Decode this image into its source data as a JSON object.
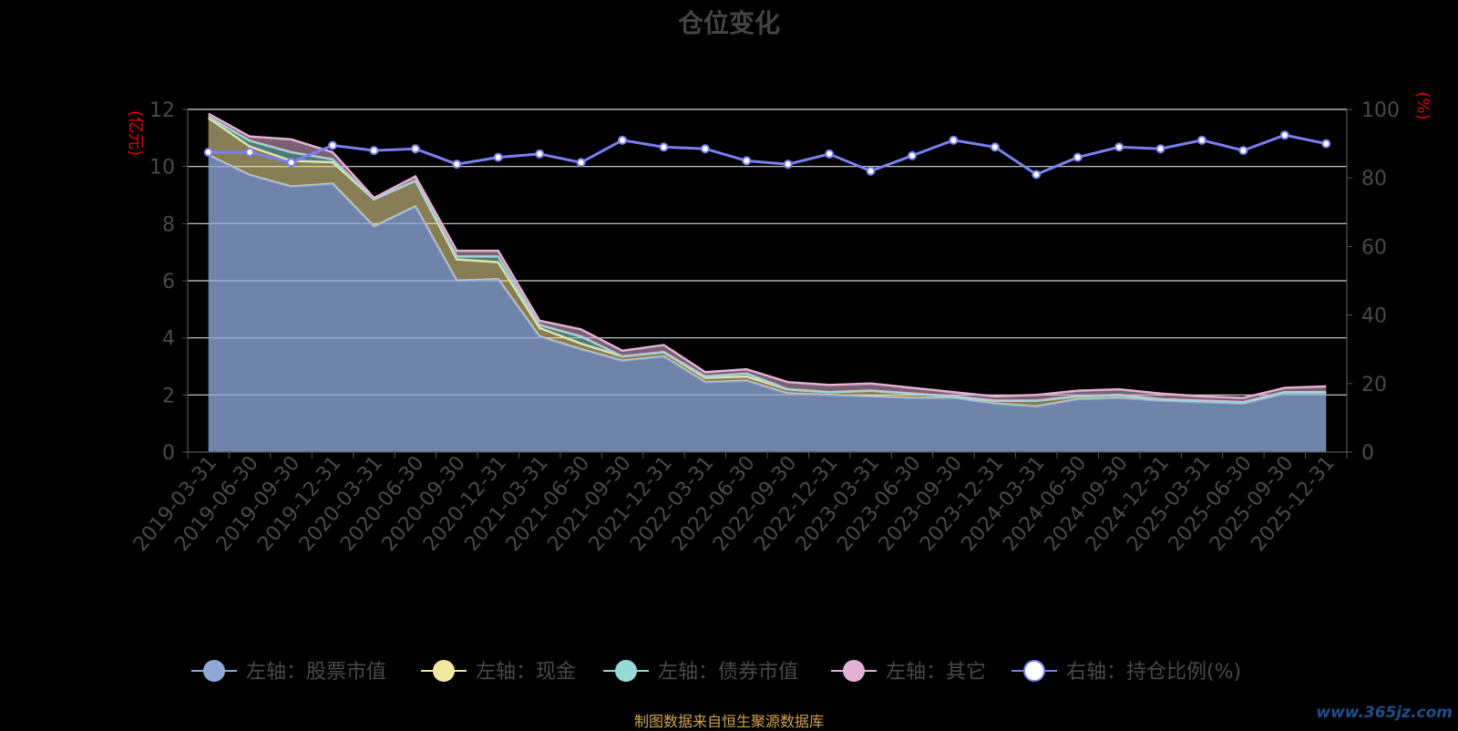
{
  "chart_data": {
    "title": "仓位变化",
    "type": "area",
    "x": [
      "2019-03-31",
      "2019-06-30",
      "2019-09-30",
      "2019-12-31",
      "2020-03-31",
      "2020-06-30",
      "2020-09-30",
      "2020-12-31",
      "2021-03-31",
      "2021-06-30",
      "2021-09-30",
      "2021-12-31",
      "2022-03-31",
      "2022-06-30",
      "2022-09-30",
      "2022-12-31",
      "2023-03-31",
      "2023-06-30",
      "2023-09-30",
      "2023-12-31",
      "2024-03-31",
      "2024-06-30",
      "2024-09-30",
      "2024-12-31",
      "2025-03-31",
      "2025-06-30",
      "2025-09-30",
      "2025-12-31"
    ],
    "y_left": {
      "label": "(亿元)",
      "ylim": [
        0,
        12
      ],
      "ticks": [
        "0",
        "2",
        "4",
        "6",
        "8",
        "10",
        "12"
      ]
    },
    "y_right": {
      "label": "(%)",
      "ylim": [
        0,
        100
      ],
      "ticks": [
        "0",
        "20",
        "40",
        "60",
        "80",
        "100"
      ]
    },
    "stacked": true,
    "grid": true,
    "series": [
      {
        "name": "左轴：股票市值",
        "axis": "left",
        "color": "#8fa8d8",
        "values": [
          10.4,
          9.7,
          9.3,
          9.4,
          7.9,
          8.6,
          6.0,
          6.05,
          4.05,
          3.6,
          3.2,
          3.35,
          2.45,
          2.5,
          2.05,
          2.0,
          1.95,
          1.9,
          1.9,
          1.7,
          1.6,
          1.85,
          1.9,
          1.8,
          1.75,
          1.7,
          2.05,
          2.05
        ]
      },
      {
        "name": "左轴：现金",
        "axis": "left",
        "color": "#f5e6a0",
        "values": [
          1.3,
          1.0,
          0.9,
          0.75,
          0.95,
          0.9,
          0.75,
          0.6,
          0.3,
          0.2,
          0.15,
          0.15,
          0.15,
          0.15,
          0.15,
          0.1,
          0.2,
          0.15,
          0.05,
          0.1,
          0.2,
          0.1,
          0.1,
          0.05,
          0.05,
          0.05,
          0.05,
          0.05
        ]
      },
      {
        "name": "左轴：债券市值",
        "axis": "left",
        "color": "#96dad6",
        "values": [
          0.05,
          0.2,
          0.3,
          0.1,
          0.0,
          0.0,
          0.1,
          0.2,
          0.1,
          0.25,
          0.0,
          0.0,
          0.05,
          0.1,
          0.0,
          0.0,
          0.0,
          0.0,
          0.0,
          0.0,
          0.0,
          0.0,
          0.0,
          0.0,
          0.0,
          0.0,
          0.0,
          0.0
        ]
      },
      {
        "name": "左轴：其它",
        "axis": "left",
        "color": "#e2b1d4",
        "values": [
          0.1,
          0.15,
          0.45,
          0.25,
          0.05,
          0.15,
          0.2,
          0.2,
          0.15,
          0.25,
          0.2,
          0.25,
          0.15,
          0.15,
          0.25,
          0.25,
          0.25,
          0.2,
          0.15,
          0.15,
          0.2,
          0.2,
          0.2,
          0.2,
          0.15,
          0.15,
          0.15,
          0.2
        ]
      },
      {
        "name": "右轴：持仓比例(%)",
        "axis": "right",
        "color": "#7b7ff2",
        "values": [
          87.5,
          87.5,
          84.5,
          89.5,
          88,
          88.5,
          84,
          86,
          87,
          84.5,
          91,
          89,
          88.5,
          85,
          84,
          87,
          82,
          86.5,
          91,
          89,
          81,
          86,
          89,
          88.5,
          91,
          88,
          92.5,
          90
        ]
      }
    ],
    "legend": "bottom"
  },
  "footer": {
    "source_note": "制图数据来自恒生聚源数据库",
    "watermark": "www.365jz.com"
  }
}
